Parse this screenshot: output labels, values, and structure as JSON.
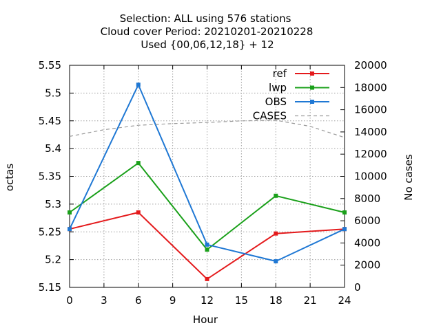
{
  "chart_data": {
    "type": "line",
    "title_lines": [
      "Selection: ALL using   576 stations",
      "Cloud cover   Period: 20210201-20210228",
      "Used {00,06,12,18} + 12"
    ],
    "xlabel": "Hour",
    "ylabel": "octas",
    "y2label": "No cases",
    "xlim": [
      0,
      24
    ],
    "ylim": [
      5.15,
      5.55
    ],
    "y2lim": [
      0,
      20000
    ],
    "xticks": [
      0,
      3,
      6,
      9,
      12,
      15,
      18,
      21,
      24
    ],
    "yticks": [
      "5.15",
      "5.2",
      "5.25",
      "5.3",
      "5.35",
      "5.4",
      "5.45",
      "5.5",
      "5.55"
    ],
    "y2ticks": [
      0,
      2000,
      4000,
      6000,
      8000,
      10000,
      12000,
      14000,
      16000,
      18000,
      20000
    ],
    "grid": true,
    "legend_position": "top-right",
    "series": [
      {
        "name": "ref",
        "color": "#e41a1c",
        "axis": "y",
        "x": [
          0,
          6,
          12,
          18,
          24
        ],
        "y": [
          5.255,
          5.285,
          5.165,
          5.247,
          5.255
        ]
      },
      {
        "name": "lwp",
        "color": "#1aa01a",
        "axis": "y",
        "x": [
          0,
          6,
          12,
          18,
          24
        ],
        "y": [
          5.285,
          5.374,
          5.218,
          5.315,
          5.285
        ]
      },
      {
        "name": "OBS",
        "color": "#1f78d4",
        "axis": "y",
        "x": [
          0,
          6,
          12,
          18,
          24
        ],
        "y": [
          5.255,
          5.515,
          5.227,
          5.197,
          5.255
        ]
      },
      {
        "name": "CASES",
        "color": "#999999",
        "axis": "y2",
        "dashed": true,
        "x": [
          0,
          3,
          6,
          9,
          12,
          15,
          18,
          21,
          24
        ],
        "y": [
          13600,
          14200,
          14600,
          14750,
          14850,
          15000,
          15050,
          14500,
          13500
        ]
      }
    ]
  }
}
